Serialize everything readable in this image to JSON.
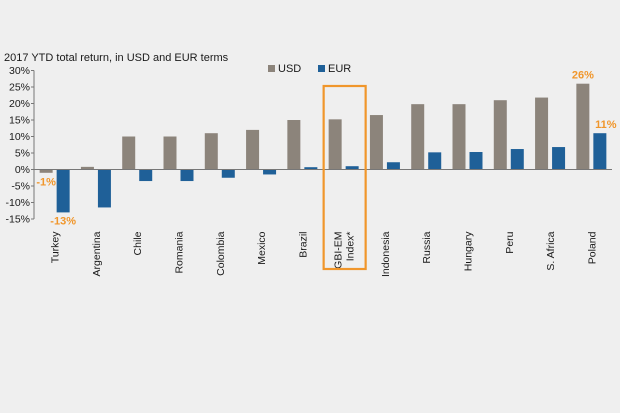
{
  "chart_data": {
    "type": "bar",
    "title": "2017 YTD total return, in USD and EUR terms",
    "categories": [
      "Turkey",
      "Argentina",
      "Chile",
      "Romania",
      "Colombia",
      "Mexico",
      "Brazil",
      "GBI-EM Index*",
      "Indonesia",
      "Russia",
      "Hungary",
      "Peru",
      "S. Africa",
      "Poland"
    ],
    "category_label_lines": [
      [
        "Turkey"
      ],
      [
        "Argentina"
      ],
      [
        "Chile"
      ],
      [
        "Romania"
      ],
      [
        "Colombia"
      ],
      [
        "Mexico"
      ],
      [
        "Brazil"
      ],
      [
        "GBI-EM",
        "Index*"
      ],
      [
        "Indonesia"
      ],
      [
        "Russia"
      ],
      [
        "Hungary"
      ],
      [
        "Peru"
      ],
      [
        "S. Africa"
      ],
      [
        "Poland"
      ]
    ],
    "series": [
      {
        "name": "USD",
        "color": "#8c847b",
        "values": [
          -1,
          0.8,
          10,
          10,
          11,
          12,
          15,
          15.2,
          16.5,
          19.8,
          19.8,
          21,
          21.8,
          26
        ]
      },
      {
        "name": "EUR",
        "color": "#1f6098",
        "values": [
          -13,
          -11.5,
          -3.5,
          -3.5,
          -2.5,
          -1.5,
          0.7,
          1,
          2.2,
          5.2,
          5.3,
          6.2,
          6.8,
          11
        ]
      }
    ],
    "ylim": [
      -15,
      30
    ],
    "yticks": [
      "-15%",
      "-10%",
      "-5%",
      "0%",
      "5%",
      "10%",
      "15%",
      "20%",
      "25%",
      "30%"
    ],
    "ytick_values": [
      -15,
      -10,
      -5,
      0,
      5,
      10,
      15,
      20,
      25,
      30
    ],
    "xlabel": "",
    "ylabel": "",
    "grid": false,
    "legend": "top-center",
    "highlight": {
      "category": "GBI-EM Index*",
      "color": "#f0962b"
    },
    "annotations": [
      {
        "text": "-1%",
        "category": "Turkey",
        "series": "USD",
        "color": "#f0962b"
      },
      {
        "text": "-13%",
        "category": "Turkey",
        "series": "EUR",
        "color": "#f0962b"
      },
      {
        "text": "26%",
        "category": "Poland",
        "series": "USD",
        "color": "#f0962b"
      },
      {
        "text": "11%",
        "category": "Poland",
        "series": "EUR",
        "color": "#f0962b"
      }
    ],
    "colors": {
      "axis": "#777777"
    }
  }
}
